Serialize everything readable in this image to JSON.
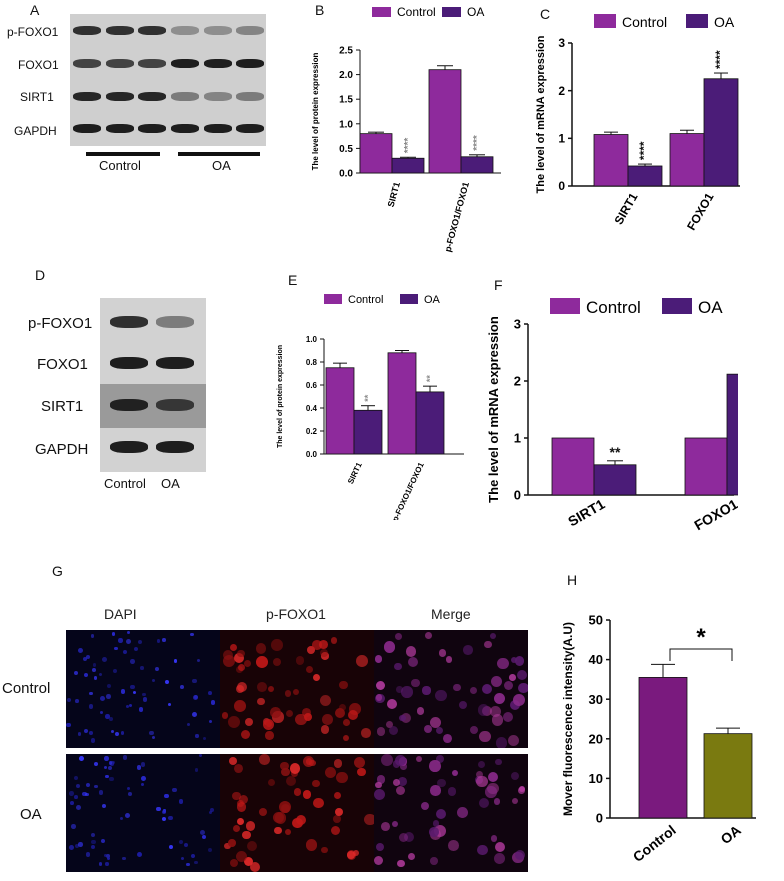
{
  "panels": {
    "a": "A",
    "b": "B",
    "c": "C",
    "d": "D",
    "e": "E",
    "f": "F",
    "g": "G",
    "h": "H"
  },
  "blotA": {
    "rows": [
      "p-FOXO1",
      "FOXO1",
      "SIRT1",
      "GAPDH"
    ],
    "groups": [
      "Control",
      "OA"
    ]
  },
  "blotD": {
    "rows": [
      "p-FOXO1",
      "FOXO1",
      "SIRT1",
      "GAPDH"
    ],
    "groups": [
      "Control",
      "OA"
    ]
  },
  "micro": {
    "columns": [
      "DAPI",
      "p-FOXO1",
      "Merge"
    ],
    "rows": [
      "Control",
      "OA"
    ]
  },
  "colors": {
    "control": "#8e2a9c",
    "oa": "#4b1c78",
    "controlH": "#7a1a7e",
    "oaH": "#7a7a10"
  },
  "chart_data": [
    {
      "id": "B",
      "type": "bar",
      "ylabel": "The level of protein expression",
      "categories": [
        "SIRT1",
        "p-FOXO1/FOXO1"
      ],
      "ylim": [
        0,
        2.5
      ],
      "yticks": [
        "0.0",
        "0.5",
        "1.0",
        "1.5",
        "2.0",
        "2.5"
      ],
      "series": [
        {
          "name": "Control",
          "values": [
            0.8,
            2.1
          ],
          "errors": [
            0.03,
            0.08
          ]
        },
        {
          "name": "OA",
          "values": [
            0.3,
            0.33
          ],
          "errors": [
            0.02,
            0.04
          ]
        }
      ],
      "significance": [
        "****",
        "****"
      ]
    },
    {
      "id": "C",
      "type": "bar",
      "ylabel": "The level of mRNA expression",
      "categories": [
        "SIRT1",
        "FOXO1"
      ],
      "ylim": [
        0,
        3
      ],
      "yticks": [
        "0",
        "1",
        "2",
        "3"
      ],
      "series": [
        {
          "name": "Control",
          "values": [
            1.08,
            1.1
          ],
          "errors": [
            0.05,
            0.07
          ]
        },
        {
          "name": "OA",
          "values": [
            0.42,
            2.25
          ],
          "errors": [
            0.04,
            0.12
          ]
        }
      ],
      "significance": [
        "****",
        "****"
      ]
    },
    {
      "id": "E",
      "type": "bar",
      "ylabel": "The level of protein expression",
      "categories": [
        "SIRT1",
        "p-FOXO1/FOXO1"
      ],
      "ylim": [
        0,
        1.0
      ],
      "yticks": [
        "0.0",
        "0.2",
        "0.4",
        "0.6",
        "0.8",
        "1.0"
      ],
      "series": [
        {
          "name": "Control",
          "values": [
            0.75,
            0.88
          ],
          "errors": [
            0.04,
            0.02
          ]
        },
        {
          "name": "OA",
          "values": [
            0.38,
            0.54
          ],
          "errors": [
            0.04,
            0.05
          ]
        }
      ],
      "significance": [
        "**",
        "**"
      ]
    },
    {
      "id": "F",
      "type": "bar",
      "ylabel": "The level of mRNA expression",
      "categories": [
        "SIRT1",
        "FOXO1"
      ],
      "ylim": [
        0,
        3
      ],
      "yticks": [
        "0",
        "1",
        "2",
        "3"
      ],
      "series": [
        {
          "name": "Control",
          "values": [
            1.0,
            1.0
          ],
          "errors": [
            0,
            0
          ]
        },
        {
          "name": "OA",
          "values": [
            0.53,
            2.12
          ],
          "errors": [
            0.07,
            0.23
          ]
        }
      ],
      "significance": [
        "**",
        "**"
      ]
    },
    {
      "id": "H",
      "type": "bar",
      "ylabel": "Mover fluorescence intensity(A.U)",
      "categories": [
        "Control",
        "OA"
      ],
      "ylim": [
        0,
        50
      ],
      "yticks": [
        "0",
        "10",
        "20",
        "30",
        "40",
        "50"
      ],
      "series": [
        {
          "name": "",
          "values": [
            35.5,
            21.3
          ],
          "errors": [
            3.3,
            1.4
          ]
        }
      ],
      "significance": [
        "*"
      ]
    }
  ]
}
